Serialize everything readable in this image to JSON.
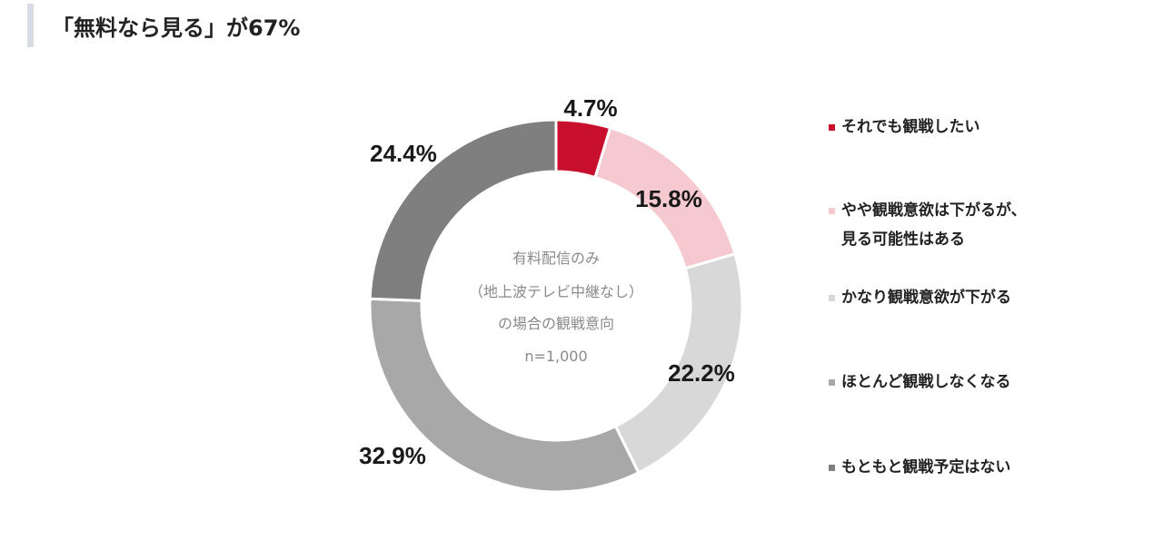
{
  "heading": {
    "title": "「無料なら見る」が67%"
  },
  "chart_data": {
    "type": "pie",
    "title": "",
    "center_label": {
      "line1": "有料配信のみ",
      "line2": "（地上波テレビ中継なし）",
      "line3": "の場合の観戦意向",
      "line4": "n=1,000"
    },
    "legend_position": "right",
    "categories": [
      "それでも観戦したい",
      "やや観戦意欲は下がるが、見る可能性はある",
      "かなり観戦意欲が下がる",
      "ほとんど観戦しなくなる",
      "もともと観戦予定はない"
    ],
    "values": [
      4.7,
      15.8,
      22.2,
      32.9,
      24.4
    ],
    "value_labels": [
      "4.7%",
      "15.8%",
      "22.2%",
      "32.9%",
      "24.4%"
    ],
    "colors": [
      "#c8102e",
      "#f6c9d1",
      "#d8d8d8",
      "#a8a8a8",
      "#7f7f7f"
    ],
    "legend": [
      {
        "label": "それでも観戦したい",
        "color": "#c8102e"
      },
      {
        "label": "やや観戦意欲は下がるが、\n見る可能性はある",
        "color": "#f6c9d1"
      },
      {
        "label": "かなり観戦意欲が下がる",
        "color": "#d8d8d8"
      },
      {
        "label": "ほとんど観戦しなくなる",
        "color": "#a8a8a8"
      },
      {
        "label": "もともと観戦予定はない",
        "color": "#7f7f7f"
      }
    ]
  }
}
